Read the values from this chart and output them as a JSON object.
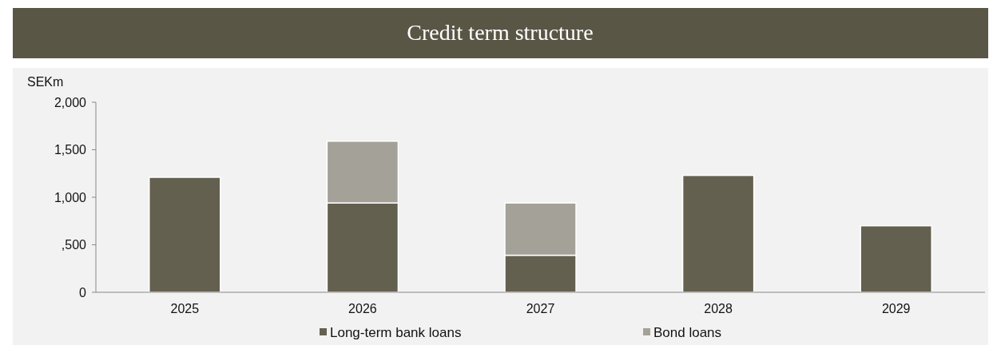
{
  "chart_data": {
    "type": "bar",
    "title": "Credit term structure",
    "ylabel": "SEKm",
    "stacked": true,
    "categories": [
      "2025",
      "2026",
      "2027",
      "2028",
      "2029"
    ],
    "series": [
      {
        "name": "Long-term bank loans",
        "color": "#646050",
        "values": [
          1210,
          940,
          390,
          1230,
          700
        ]
      },
      {
        "name": "Bond loans",
        "color": "#a4a198",
        "values": [
          null,
          650,
          550,
          null,
          null
        ]
      }
    ],
    "ylim": [
      0,
      2000
    ],
    "yticks": [
      {
        "value": 0,
        "label": "0"
      },
      {
        "value": 500,
        "label": ",500"
      },
      {
        "value": 1000,
        "label": "1,000"
      },
      {
        "value": 1500,
        "label": "1,500"
      },
      {
        "value": 2000,
        "label": "2,000"
      }
    ],
    "grid": false,
    "legend": "bottom"
  }
}
